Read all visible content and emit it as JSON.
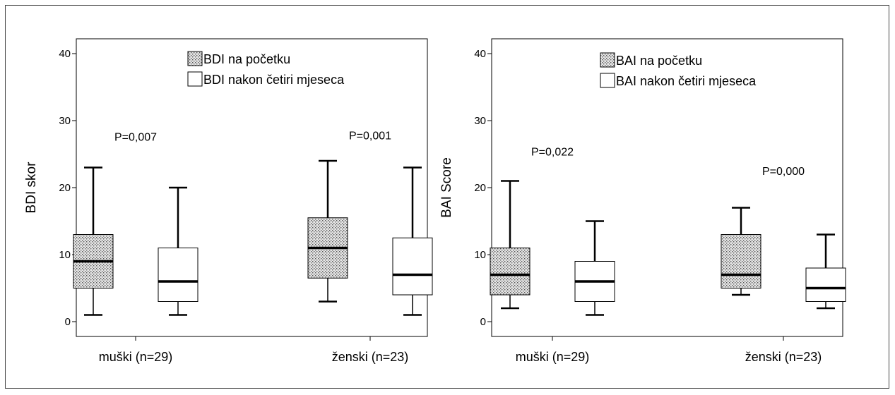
{
  "chart_data": [
    {
      "type": "boxplot",
      "ylabel": "BDI skor",
      "ylim": [
        0,
        40
      ],
      "yticks": [
        0,
        10,
        20,
        30,
        40
      ],
      "categories": [
        "muški (n=29)",
        "ženski (n=23)"
      ],
      "legend": {
        "placement": "top-center",
        "entries": [
          "BDI na početku",
          "BDI nakon četiri mjeseca"
        ]
      },
      "series": [
        {
          "name": "BDI na početku",
          "pattern": "dotted",
          "boxes": [
            {
              "min": 1,
              "q1": 5,
              "median": 9,
              "q3": 13,
              "max": 23
            },
            {
              "min": 3,
              "q1": 6.5,
              "median": 11,
              "q3": 15.5,
              "max": 24
            }
          ]
        },
        {
          "name": "BDI nakon četiri mjeseca",
          "pattern": "none",
          "boxes": [
            {
              "min": 1,
              "q1": 3,
              "median": 6,
              "q3": 11,
              "max": 20
            },
            {
              "min": 1,
              "q1": 4,
              "median": 7,
              "q3": 12.5,
              "max": 23
            }
          ]
        }
      ],
      "annotations": [
        {
          "text": "P=0,007",
          "category": 0,
          "y": 27
        },
        {
          "text": "P=0,001",
          "category": 1,
          "y": 27.2
        }
      ]
    },
    {
      "type": "boxplot",
      "ylabel": "BAI Score",
      "ylim": [
        0,
        40
      ],
      "yticks": [
        0,
        10,
        20,
        30,
        40
      ],
      "categories": [
        "muški (n=29)",
        "ženski (n=23)"
      ],
      "legend": {
        "placement": "top-center",
        "entries": [
          "BAI na početku",
          "BAI  nakon četiri mjeseca"
        ]
      },
      "series": [
        {
          "name": "BAI na početku",
          "pattern": "dotted",
          "boxes": [
            {
              "min": 2,
              "q1": 4,
              "median": 7,
              "q3": 11,
              "max": 21
            },
            {
              "min": 4,
              "q1": 5,
              "median": 7,
              "q3": 13,
              "max": 17
            }
          ]
        },
        {
          "name": "BAI  nakon četiri mjeseca",
          "pattern": "none",
          "boxes": [
            {
              "min": 1,
              "q1": 3,
              "median": 6,
              "q3": 9,
              "max": 15
            },
            {
              "min": 2,
              "q1": 3,
              "median": 5,
              "q3": 8,
              "max": 13
            }
          ]
        }
      ],
      "annotations": [
        {
          "text": "P=0,022",
          "category": 0,
          "y": 24.8
        },
        {
          "text": "P=0,000",
          "category": 1,
          "y": 21.9
        }
      ]
    }
  ],
  "colors": {
    "axis": "#000000",
    "frame": "#444444",
    "pattern_dot": "#555555",
    "pattern_bg": "#e6e6e6"
  }
}
